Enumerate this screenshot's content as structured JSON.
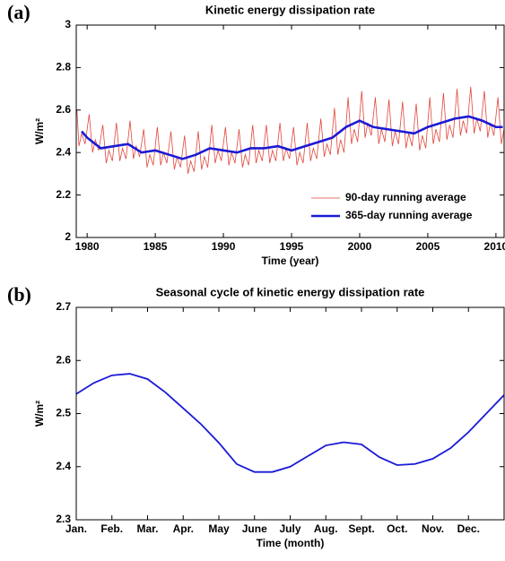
{
  "chart_data": [
    {
      "type": "line",
      "panel_label": "(a)",
      "title": "Kinetic energy dissipation rate",
      "xlabel": "Time (year)",
      "ylabel": "W/m²",
      "xlim": [
        1979.2,
        2010.6
      ],
      "xticks": [
        1980,
        1985,
        1990,
        1995,
        2000,
        2005,
        2010
      ],
      "ylim": [
        2,
        3
      ],
      "yticks": [
        2,
        2.2,
        2.4,
        2.6,
        2.8,
        3
      ],
      "legend": "lower right",
      "series": [
        {
          "name": "90-day running average",
          "color": "#e0463c",
          "width": 0.8,
          "x": [
            1979.25,
            1979.4,
            1979.6,
            1979.85,
            1980.15,
            1980.4,
            1980.6,
            1980.85,
            1981.15,
            1981.4,
            1981.6,
            1981.85,
            1982.15,
            1982.4,
            1982.6,
            1982.85,
            1983.15,
            1983.4,
            1983.6,
            1983.85,
            1984.15,
            1984.4,
            1984.6,
            1984.85,
            1985.15,
            1985.4,
            1985.6,
            1985.85,
            1986.15,
            1986.4,
            1986.6,
            1986.85,
            1987.15,
            1987.4,
            1987.6,
            1987.85,
            1988.15,
            1988.4,
            1988.6,
            1988.85,
            1989.15,
            1989.4,
            1989.6,
            1989.85,
            1990.15,
            1990.4,
            1990.6,
            1990.85,
            1991.15,
            1991.4,
            1991.6,
            1991.85,
            1992.15,
            1992.4,
            1992.6,
            1992.85,
            1993.15,
            1993.4,
            1993.6,
            1993.85,
            1994.15,
            1994.4,
            1994.6,
            1994.85,
            1995.15,
            1995.4,
            1995.6,
            1995.85,
            1996.15,
            1996.4,
            1996.6,
            1996.85,
            1997.15,
            1997.4,
            1997.6,
            1997.85,
            1998.15,
            1998.4,
            1998.6,
            1998.85,
            1999.15,
            1999.4,
            1999.6,
            1999.85,
            2000.15,
            2000.4,
            2000.6,
            2000.85,
            2001.15,
            2001.4,
            2001.6,
            2001.85,
            2002.15,
            2002.4,
            2002.6,
            2002.85,
            2003.15,
            2003.4,
            2003.6,
            2003.85,
            2004.15,
            2004.4,
            2004.6,
            2004.85,
            2005.15,
            2005.4,
            2005.6,
            2005.85,
            2006.15,
            2006.4,
            2006.6,
            2006.85,
            2007.15,
            2007.4,
            2007.6,
            2007.85,
            2008.15,
            2008.4,
            2008.6,
            2008.85,
            2009.15,
            2009.4,
            2009.6,
            2009.85,
            2010.15,
            2010.4,
            2010.6
          ],
          "values": [
            2.6,
            2.43,
            2.49,
            2.44,
            2.58,
            2.4,
            2.46,
            2.41,
            2.53,
            2.35,
            2.41,
            2.36,
            2.54,
            2.36,
            2.42,
            2.37,
            2.55,
            2.37,
            2.43,
            2.38,
            2.51,
            2.33,
            2.39,
            2.34,
            2.52,
            2.34,
            2.4,
            2.35,
            2.5,
            2.32,
            2.38,
            2.33,
            2.48,
            2.3,
            2.36,
            2.31,
            2.5,
            2.32,
            2.38,
            2.33,
            2.53,
            2.35,
            2.41,
            2.36,
            2.52,
            2.34,
            2.4,
            2.35,
            2.51,
            2.33,
            2.39,
            2.34,
            2.53,
            2.35,
            2.41,
            2.36,
            2.53,
            2.35,
            2.41,
            2.36,
            2.54,
            2.36,
            2.42,
            2.37,
            2.52,
            2.34,
            2.4,
            2.35,
            2.54,
            2.36,
            2.42,
            2.37,
            2.56,
            2.38,
            2.44,
            2.39,
            2.61,
            2.39,
            2.46,
            2.4,
            2.66,
            2.44,
            2.51,
            2.45,
            2.69,
            2.47,
            2.54,
            2.48,
            2.66,
            2.44,
            2.51,
            2.45,
            2.65,
            2.43,
            2.5,
            2.44,
            2.64,
            2.42,
            2.49,
            2.43,
            2.63,
            2.41,
            2.48,
            2.42,
            2.66,
            2.44,
            2.51,
            2.45,
            2.68,
            2.46,
            2.53,
            2.47,
            2.7,
            2.48,
            2.55,
            2.49,
            2.71,
            2.49,
            2.56,
            2.5,
            2.69,
            2.47,
            2.54,
            2.48,
            2.66,
            2.44,
            2.51
          ]
        },
        {
          "name": "365-day running average",
          "color": "#1a1ad6",
          "width": 2.6,
          "x": [
            1979.6,
            1980,
            1981,
            1982,
            1983,
            1984,
            1985,
            1986,
            1987,
            1988,
            1989,
            1990,
            1991,
            1992,
            1993,
            1994,
            1995,
            1996,
            1997,
            1998,
            1999,
            2000,
            2001,
            2002,
            2003,
            2004,
            2005,
            2006,
            2007,
            2008,
            2009,
            2010,
            2010.5
          ],
          "values": [
            2.5,
            2.47,
            2.42,
            2.43,
            2.44,
            2.4,
            2.41,
            2.39,
            2.37,
            2.39,
            2.42,
            2.41,
            2.4,
            2.42,
            2.42,
            2.43,
            2.41,
            2.43,
            2.45,
            2.47,
            2.52,
            2.55,
            2.52,
            2.51,
            2.5,
            2.49,
            2.52,
            2.54,
            2.56,
            2.57,
            2.55,
            2.52,
            2.52
          ]
        }
      ]
    },
    {
      "type": "line",
      "panel_label": "(b)",
      "title": "Seasonal cycle of kinetic energy dissipation rate",
      "xlabel": "Time (month)",
      "ylabel": "W/m²",
      "xlim": [
        0,
        12
      ],
      "xticks": [
        {
          "value": 0,
          "label": "Jan."
        },
        {
          "value": 1,
          "label": "Feb."
        },
        {
          "value": 2,
          "label": "Mar."
        },
        {
          "value": 3,
          "label": "Apr."
        },
        {
          "value": 4,
          "label": "May"
        },
        {
          "value": 5,
          "label": "June"
        },
        {
          "value": 6,
          "label": "July"
        },
        {
          "value": 7,
          "label": "Aug."
        },
        {
          "value": 8,
          "label": "Sept."
        },
        {
          "value": 9,
          "label": "Oct."
        },
        {
          "value": 10,
          "label": "Nov."
        },
        {
          "value": 11,
          "label": "Dec."
        }
      ],
      "ylim": [
        2.3,
        2.7
      ],
      "yticks": [
        2.3,
        2.4,
        2.5,
        2.6,
        2.7
      ],
      "series": [
        {
          "color": "#1a1ad6",
          "width": 1.8,
          "x": [
            0,
            0.5,
            1,
            1.5,
            2,
            2.5,
            3,
            3.5,
            4,
            4.5,
            5,
            5.5,
            6,
            6.5,
            7,
            7.5,
            8,
            8.5,
            9,
            9.5,
            10,
            10.5,
            11,
            11.5,
            12
          ],
          "values": [
            2.537,
            2.558,
            2.572,
            2.575,
            2.565,
            2.54,
            2.51,
            2.48,
            2.445,
            2.405,
            2.39,
            2.39,
            2.4,
            2.42,
            2.44,
            2.446,
            2.442,
            2.418,
            2.403,
            2.405,
            2.415,
            2.435,
            2.465,
            2.5,
            2.535
          ]
        }
      ]
    }
  ]
}
